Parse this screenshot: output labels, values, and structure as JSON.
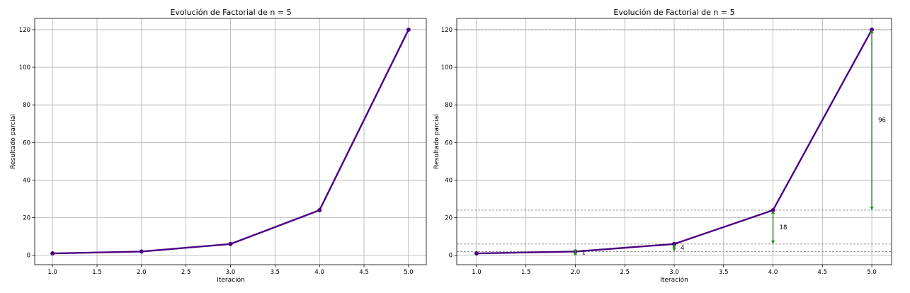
{
  "chart_data": [
    {
      "type": "line",
      "title": "Evolución de Factorial de n = 5",
      "xlabel": "Iteración",
      "ylabel": "Resultado parcial",
      "x": [
        1,
        2,
        3,
        4,
        5
      ],
      "y": [
        1,
        2,
        6,
        24,
        120
      ],
      "xlim": [
        0.8,
        5.2
      ],
      "ylim": [
        -5,
        126
      ],
      "xticks": [
        "1.0",
        "1.5",
        "2.0",
        "2.5",
        "3.0",
        "3.5",
        "4.0",
        "4.5",
        "5.0"
      ],
      "yticks": [
        "0",
        "20",
        "40",
        "60",
        "80",
        "100",
        "120"
      ],
      "grid": true,
      "line_color": "#4b0082",
      "marker": "circle"
    },
    {
      "type": "line",
      "title": "Evolución de Factorial de n = 5",
      "xlabel": "Iteración",
      "ylabel": "Resultado parcial",
      "x": [
        1,
        2,
        3,
        4,
        5
      ],
      "y": [
        1,
        2,
        6,
        24,
        120
      ],
      "xlim": [
        0.8,
        5.2
      ],
      "ylim": [
        -5,
        126
      ],
      "xticks": [
        "1.0",
        "1.5",
        "2.0",
        "2.5",
        "3.0",
        "3.5",
        "4.0",
        "4.5",
        "5.0"
      ],
      "yticks": [
        "0",
        "20",
        "40",
        "60",
        "80",
        "100",
        "120"
      ],
      "grid": true,
      "line_color": "#4b0082",
      "marker": "circle",
      "reference_lines": [
        2,
        6,
        24,
        120
      ],
      "reference_line_color": "#888888",
      "arrows": [
        {
          "x": 2,
          "from": 1,
          "to": 2,
          "label": "1"
        },
        {
          "x": 3,
          "from": 2,
          "to": 6,
          "label": "4"
        },
        {
          "x": 4,
          "from": 6,
          "to": 24,
          "label": "18"
        },
        {
          "x": 5,
          "from": 24,
          "to": 120,
          "label": "96"
        }
      ],
      "arrow_color": "#228b22"
    }
  ]
}
